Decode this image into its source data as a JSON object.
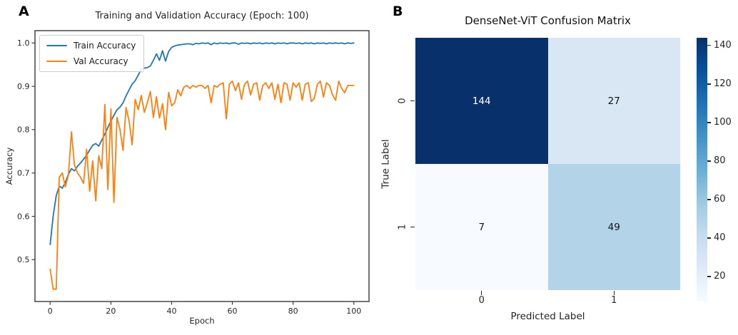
{
  "panels": {
    "a": {
      "label": "A"
    },
    "b": {
      "label": "B"
    }
  },
  "chart_data": [
    {
      "type": "line",
      "panel": "A",
      "title": "Training and Validation Accuracy (Epoch: 100)",
      "xlabel": "Epoch",
      "ylabel": "Accuracy",
      "x_start": 0,
      "x_step": 1,
      "n_points": 101,
      "xlim": [
        -5,
        105
      ],
      "ylim": [
        0.4036,
        1.0284
      ],
      "x_ticks": [
        0,
        20,
        40,
        60,
        80,
        100
      ],
      "x_tick_labels": [
        "0",
        "20",
        "40",
        "60",
        "80",
        "100"
      ],
      "y_ticks": [
        0.5,
        0.6,
        0.7,
        0.8,
        0.9,
        1.0
      ],
      "y_tick_labels": [
        "0.5",
        "0.6",
        "0.7",
        "0.8",
        "0.9",
        "1.0"
      ],
      "grid": false,
      "legend_position": "upper left",
      "series": [
        {
          "name": "Train Accuracy",
          "color": "#1f77b4",
          "values": [
            0.535,
            0.601,
            0.648,
            0.67,
            0.665,
            0.678,
            0.697,
            0.71,
            0.705,
            0.716,
            0.723,
            0.732,
            0.741,
            0.753,
            0.764,
            0.768,
            0.762,
            0.776,
            0.79,
            0.805,
            0.82,
            0.833,
            0.846,
            0.852,
            0.862,
            0.878,
            0.892,
            0.905,
            0.913,
            0.926,
            0.94,
            0.942,
            0.943,
            0.947,
            0.96,
            0.975,
            0.96,
            0.982,
            0.958,
            0.98,
            0.99,
            0.993,
            0.995,
            0.996,
            0.997,
            0.998,
            0.998,
            0.996,
            0.999,
            0.998,
            1.0,
            0.999,
            1.0,
            0.996,
            1.0,
            0.998,
            1.0,
            0.999,
            1.0,
            0.998,
            1.0,
            1.0,
            0.997,
            1.0,
            0.999,
            1.0,
            0.998,
            1.0,
            0.999,
            1.0,
            0.998,
            1.0,
            0.999,
            1.0,
            0.998,
            1.0,
            0.999,
            1.0,
            0.998,
            1.0,
            1.0,
            0.999,
            1.0,
            0.998,
            1.0,
            0.999,
            1.0,
            0.998,
            1.0,
            0.999,
            1.0,
            0.998,
            1.0,
            0.999,
            1.0,
            0.999,
            1.0,
            0.998,
            1.0,
            0.999,
            1.0
          ]
        },
        {
          "name": "Val Accuracy",
          "color": "#ff7f0e",
          "values": [
            0.478,
            0.432,
            0.432,
            0.69,
            0.7,
            0.668,
            0.695,
            0.795,
            0.718,
            0.7,
            0.69,
            0.676,
            0.755,
            0.658,
            0.728,
            0.636,
            0.74,
            0.71,
            0.858,
            0.662,
            0.848,
            0.632,
            0.828,
            0.8,
            0.752,
            0.851,
            0.82,
            0.765,
            0.87,
            0.846,
            0.879,
            0.84,
            0.862,
            0.888,
            0.828,
            0.876,
            0.827,
            0.86,
            0.8,
            0.886,
            0.855,
            0.862,
            0.892,
            0.878,
            0.898,
            0.902,
            0.895,
            0.902,
            0.898,
            0.902,
            0.902,
            0.895,
            0.902,
            0.862,
            0.902,
            0.898,
            0.905,
            0.908,
            0.825,
            0.905,
            0.912,
            0.89,
            0.908,
            0.87,
            0.905,
            0.912,
            0.88,
            0.905,
            0.908,
            0.868,
            0.902,
            0.908,
            0.895,
            0.908,
            0.87,
            0.905,
            0.862,
            0.908,
            0.905,
            0.868,
            0.908,
            0.898,
            0.908,
            0.868,
            0.905,
            0.908,
            0.865,
            0.872,
            0.905,
            0.912,
            0.875,
            0.908,
            0.902,
            0.88,
            0.868,
            0.912,
            0.895,
            0.885,
            0.902,
            0.902,
            0.902
          ]
        }
      ]
    },
    {
      "type": "heatmap",
      "panel": "B",
      "title": "DenseNet-ViT Confusion Matrix",
      "xlabel": "Predicted Label",
      "ylabel": "True Label",
      "x_tick_labels": [
        "0",
        "1"
      ],
      "y_tick_labels": [
        "0",
        "1"
      ],
      "values": [
        [
          144,
          27
        ],
        [
          7,
          49
        ]
      ],
      "cell_colors": [
        [
          "#08306b",
          "#d9e7f5"
        ],
        [
          "#f7fbff",
          "#b3d3e9"
        ]
      ],
      "cell_text_colors": [
        [
          "#ffffff",
          "#151515"
        ],
        [
          "#151515",
          "#151515"
        ]
      ],
      "colormap": "Blues",
      "colorbar": {
        "vmin": 7,
        "vmax": 144,
        "ticks": [
          20,
          40,
          60,
          80,
          100,
          120,
          140
        ],
        "tick_labels": [
          "20",
          "40",
          "60",
          "80",
          "100",
          "120",
          "140"
        ],
        "gradient_top_to_bottom": [
          "#08306b",
          "#08519c",
          "#2171b5",
          "#4292c6",
          "#6baed6",
          "#9ecae1",
          "#c6dbef",
          "#deebf7",
          "#f7fbff"
        ]
      }
    }
  ]
}
